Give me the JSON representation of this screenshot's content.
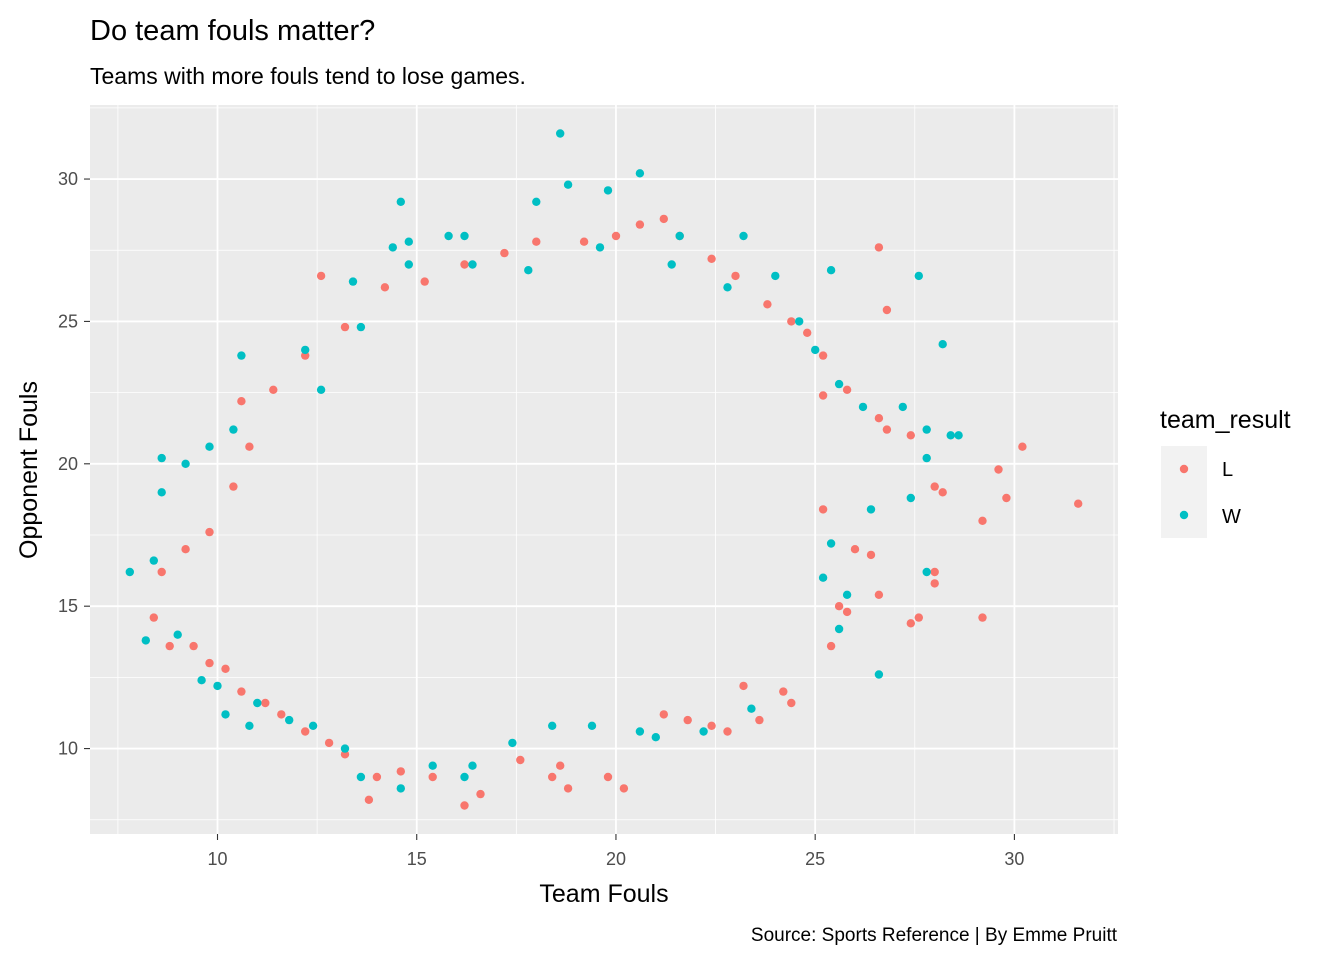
{
  "chart_data": {
    "type": "scatter",
    "title": "Do team fouls matter?",
    "subtitle": "Teams with more fouls tend to lose games.",
    "xlabel": "Team Fouls",
    "ylabel": "Opponent Fouls",
    "caption": "Source: Sports Reference | By Emme Pruitt",
    "xlim": [
      6.8,
      32.6
    ],
    "ylim": [
      7.0,
      32.6
    ],
    "x_ticks": [
      10,
      15,
      20,
      25,
      30
    ],
    "y_ticks": [
      10,
      15,
      20,
      25,
      30
    ],
    "grid": true,
    "legend": {
      "title": "team_result",
      "position": "right",
      "entries": [
        "L",
        "W"
      ]
    },
    "series": [
      {
        "name": "L",
        "color": "#F8766D",
        "points": [
          [
            31.6,
            18.6
          ],
          [
            30.2,
            20.6
          ],
          [
            29.6,
            19.8
          ],
          [
            29.8,
            18.8
          ],
          [
            29.2,
            18.0
          ],
          [
            29.2,
            14.6
          ],
          [
            28.0,
            16.2
          ],
          [
            28.0,
            15.8
          ],
          [
            27.6,
            14.6
          ],
          [
            27.4,
            14.4
          ],
          [
            26.6,
            27.6
          ],
          [
            26.8,
            25.4
          ],
          [
            26.6,
            15.4
          ],
          [
            26.4,
            16.8
          ],
          [
            26.0,
            17.0
          ],
          [
            25.8,
            14.8
          ],
          [
            25.6,
            15.0
          ],
          [
            25.4,
            13.6
          ],
          [
            25.2,
            22.4
          ],
          [
            25.2,
            18.4
          ],
          [
            24.4,
            11.6
          ],
          [
            24.2,
            12.0
          ],
          [
            23.6,
            11.0
          ],
          [
            23.2,
            12.2
          ],
          [
            22.8,
            10.6
          ],
          [
            22.4,
            10.8
          ],
          [
            21.8,
            11.0
          ],
          [
            21.2,
            11.2
          ],
          [
            20.2,
            8.6
          ],
          [
            19.8,
            9.0
          ],
          [
            18.8,
            8.6
          ],
          [
            18.6,
            9.4
          ],
          [
            18.4,
            9.0
          ],
          [
            17.6,
            9.6
          ],
          [
            16.6,
            8.4
          ],
          [
            16.2,
            8.0
          ],
          [
            15.4,
            9.0
          ],
          [
            14.6,
            9.2
          ],
          [
            13.8,
            8.2
          ],
          [
            14.0,
            9.0
          ],
          [
            13.2,
            9.8
          ],
          [
            12.8,
            10.2
          ],
          [
            12.2,
            10.6
          ],
          [
            11.6,
            11.2
          ],
          [
            11.2,
            11.6
          ],
          [
            10.6,
            12.0
          ],
          [
            10.2,
            12.8
          ],
          [
            9.8,
            13.0
          ],
          [
            9.4,
            13.6
          ],
          [
            8.8,
            13.6
          ],
          [
            8.4,
            14.6
          ],
          [
            8.6,
            16.2
          ],
          [
            9.2,
            17.0
          ],
          [
            9.8,
            17.6
          ],
          [
            10.4,
            19.2
          ],
          [
            10.8,
            20.6
          ],
          [
            10.6,
            22.2
          ],
          [
            11.4,
            22.6
          ],
          [
            12.2,
            23.8
          ],
          [
            12.6,
            26.6
          ],
          [
            13.2,
            24.8
          ],
          [
            14.2,
            26.2
          ],
          [
            15.2,
            26.4
          ],
          [
            16.2,
            27.0
          ],
          [
            17.2,
            27.4
          ],
          [
            18.0,
            27.8
          ],
          [
            19.2,
            27.8
          ],
          [
            20.0,
            28.0
          ],
          [
            20.6,
            28.4
          ],
          [
            21.2,
            28.6
          ],
          [
            21.6,
            28.0
          ],
          [
            22.4,
            27.2
          ],
          [
            23.0,
            26.6
          ],
          [
            23.8,
            25.6
          ],
          [
            24.4,
            25.0
          ],
          [
            24.8,
            24.6
          ],
          [
            25.2,
            23.8
          ],
          [
            25.8,
            22.6
          ],
          [
            26.6,
            21.6
          ],
          [
            26.8,
            21.2
          ],
          [
            27.4,
            21.0
          ],
          [
            28.0,
            19.2
          ],
          [
            28.2,
            19.0
          ]
        ]
      },
      {
        "name": "W",
        "color": "#00BFC4",
        "points": [
          [
            18.6,
            31.6
          ],
          [
            20.6,
            30.2
          ],
          [
            18.8,
            29.8
          ],
          [
            19.8,
            29.6
          ],
          [
            18.0,
            29.2
          ],
          [
            14.6,
            29.2
          ],
          [
            16.2,
            28.0
          ],
          [
            15.8,
            28.0
          ],
          [
            14.8,
            27.8
          ],
          [
            14.4,
            27.6
          ],
          [
            21.6,
            28.0
          ],
          [
            23.2,
            28.0
          ],
          [
            25.4,
            26.8
          ],
          [
            27.6,
            26.6
          ],
          [
            28.2,
            24.2
          ],
          [
            28.6,
            21.0
          ],
          [
            28.4,
            21.0
          ],
          [
            27.8,
            20.2
          ],
          [
            27.4,
            18.8
          ],
          [
            27.8,
            16.2
          ],
          [
            26.6,
            12.6
          ],
          [
            25.6,
            14.2
          ],
          [
            25.8,
            15.4
          ],
          [
            25.2,
            16.0
          ],
          [
            25.4,
            17.2
          ],
          [
            26.4,
            18.4
          ],
          [
            23.4,
            11.4
          ],
          [
            22.2,
            10.6
          ],
          [
            21.0,
            10.4
          ],
          [
            20.6,
            10.6
          ],
          [
            19.4,
            10.8
          ],
          [
            18.4,
            10.8
          ],
          [
            17.4,
            10.2
          ],
          [
            16.4,
            9.4
          ],
          [
            16.2,
            9.0
          ],
          [
            15.4,
            9.4
          ],
          [
            14.6,
            8.6
          ],
          [
            13.6,
            9.0
          ],
          [
            13.2,
            10.0
          ],
          [
            12.4,
            10.8
          ],
          [
            11.8,
            11.0
          ],
          [
            11.0,
            11.6
          ],
          [
            10.8,
            10.8
          ],
          [
            10.2,
            11.2
          ],
          [
            10.0,
            12.2
          ],
          [
            9.6,
            12.4
          ],
          [
            9.0,
            14.0
          ],
          [
            8.2,
            13.8
          ],
          [
            7.8,
            16.2
          ],
          [
            8.4,
            16.6
          ],
          [
            8.6,
            19.0
          ],
          [
            8.6,
            20.2
          ],
          [
            9.2,
            20.0
          ],
          [
            9.8,
            20.6
          ],
          [
            10.4,
            21.2
          ],
          [
            10.6,
            23.8
          ],
          [
            12.2,
            24.0
          ],
          [
            12.6,
            22.6
          ],
          [
            13.4,
            26.4
          ],
          [
            13.6,
            24.8
          ],
          [
            14.8,
            27.0
          ],
          [
            16.4,
            27.0
          ],
          [
            17.8,
            26.8
          ],
          [
            19.6,
            27.6
          ],
          [
            21.4,
            27.0
          ],
          [
            22.8,
            26.2
          ],
          [
            24.0,
            26.6
          ],
          [
            24.6,
            25.0
          ],
          [
            25.0,
            24.0
          ],
          [
            25.6,
            22.8
          ],
          [
            26.2,
            22.0
          ],
          [
            27.2,
            22.0
          ],
          [
            27.8,
            21.2
          ]
        ]
      }
    ]
  }
}
